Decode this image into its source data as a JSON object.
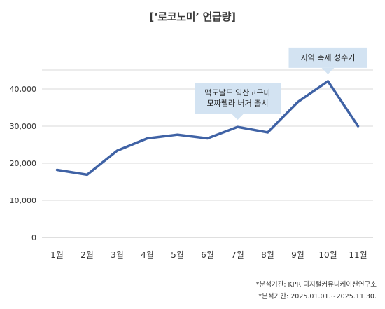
{
  "chart_data": {
    "type": "line",
    "title": "[‘로코노미’ 언급량]",
    "categories": [
      "1월",
      "2월",
      "3월",
      "4월",
      "5월",
      "6월",
      "7월",
      "8월",
      "9월",
      "10월",
      "11월"
    ],
    "series": [
      {
        "values": [
          18200,
          16900,
          23400,
          26700,
          27700,
          26700,
          29800,
          28300,
          36500,
          42100,
          30000
        ],
        "color": "#3f62a5"
      }
    ],
    "ylim": [
      0,
      40000
    ],
    "yticks": [
      0,
      10000,
      20000,
      30000,
      40000
    ],
    "ytick_labels": [
      "0",
      "10,000",
      "20,000",
      "30,000",
      "40,000"
    ],
    "xlabel": "",
    "ylabel": "",
    "grid": true,
    "legend": "none",
    "annotations": [
      {
        "category": "7월",
        "lines": [
          "맥도날드 익산고구마",
          "모짜렐라 버거 출시"
        ]
      },
      {
        "category": "10월",
        "lines": [
          "지역 축제 성수기"
        ]
      }
    ],
    "annotation_color": "#d3e3f2",
    "grid_color": "#d9d9d9"
  },
  "notes": {
    "source": "*분석기관: KPR 디지털커뮤니케이션연구소",
    "period": "*분석기간: 2025.01.01.~2025.11.30."
  }
}
